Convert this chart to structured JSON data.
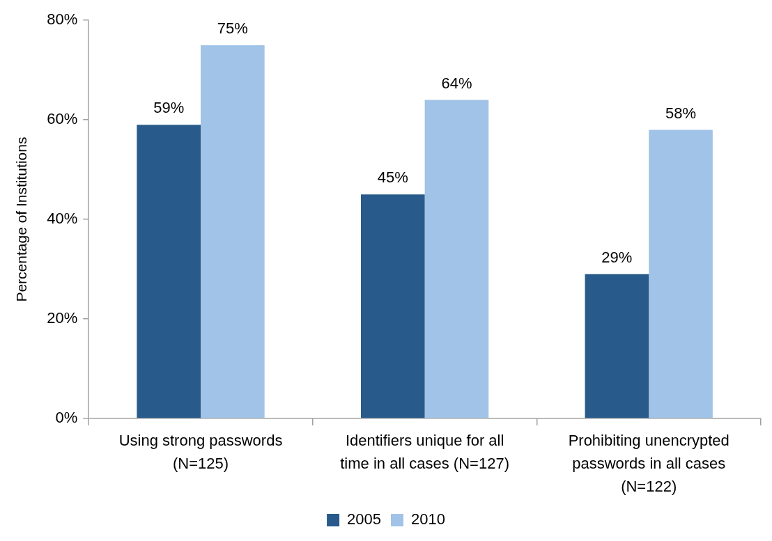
{
  "chart_data": {
    "type": "bar",
    "categories": [
      "Using strong passwords (N=125)",
      "Identifiers unique for all time in all cases (N=127)",
      "Prohibiting unencrypted passwords in all cases (N=122)"
    ],
    "series": [
      {
        "name": "2005",
        "color": "#285b8b",
        "values": [
          59,
          45,
          29
        ],
        "value_labels": [
          "59%",
          "45%",
          "29%"
        ]
      },
      {
        "name": "2010",
        "color": "#a1c3e7",
        "values": [
          75,
          64,
          58
        ],
        "value_labels": [
          "75%",
          "64%",
          "58%"
        ]
      }
    ],
    "ylabel": "Percentage of Institutions",
    "ylim": [
      0,
      80
    ],
    "yticks": [
      {
        "value": 0,
        "label": "0%"
      },
      {
        "value": 20,
        "label": "20%"
      },
      {
        "value": 40,
        "label": "40%"
      },
      {
        "value": 60,
        "label": "60%"
      },
      {
        "value": 80,
        "label": "80%"
      }
    ],
    "grid": false,
    "legend": "bottom"
  }
}
